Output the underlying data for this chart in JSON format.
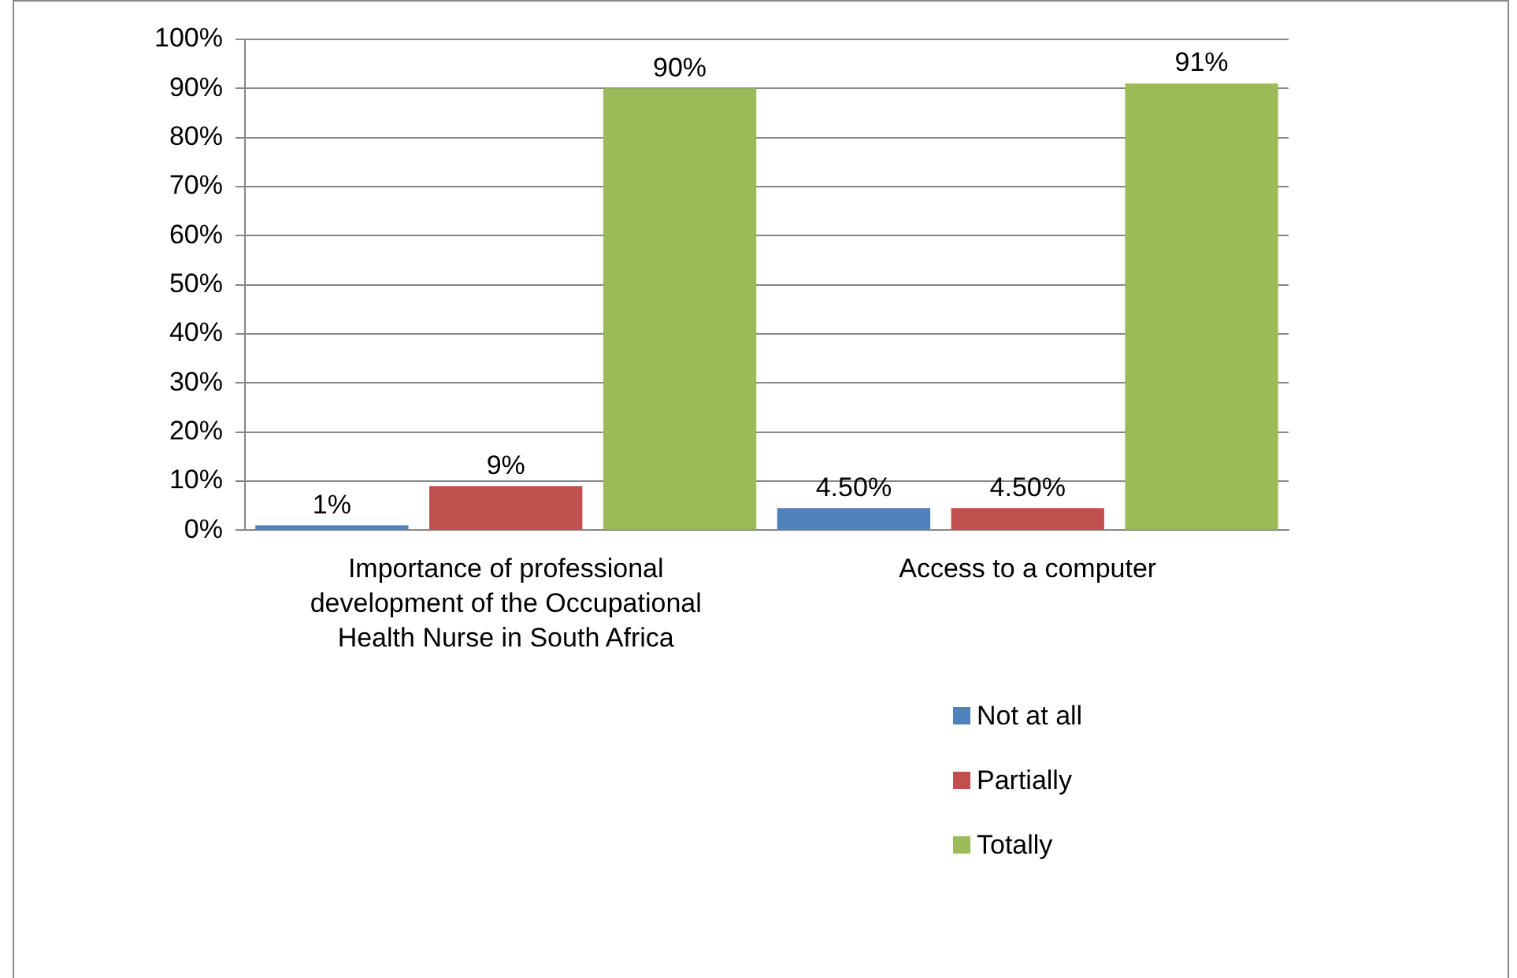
{
  "chart_data": {
    "type": "bar",
    "categories": [
      "Importance of professional development of the Occupational Health Nurse in South Africa",
      "Access to a computer"
    ],
    "series": [
      {
        "name": "Not at all",
        "color": "#4f81bd",
        "values": [
          1,
          4.5
        ],
        "value_labels": [
          "1%",
          "4.50%"
        ]
      },
      {
        "name": "Partially",
        "color": "#c0504d",
        "values": [
          9,
          4.5
        ],
        "value_labels": [
          "9%",
          "4.50%"
        ]
      },
      {
        "name": "Totally",
        "color": "#9bbb59",
        "values": [
          90,
          91
        ],
        "value_labels": [
          "90%",
          "91%"
        ]
      }
    ],
    "ylim": [
      0,
      100
    ],
    "yticks": [
      {
        "value": 0,
        "label": "0%"
      },
      {
        "value": 10,
        "label": "10%"
      },
      {
        "value": 20,
        "label": "20%"
      },
      {
        "value": 30,
        "label": "30%"
      },
      {
        "value": 40,
        "label": "40%"
      },
      {
        "value": 50,
        "label": "50%"
      },
      {
        "value": 60,
        "label": "60%"
      },
      {
        "value": 70,
        "label": "70%"
      },
      {
        "value": 80,
        "label": "80%"
      },
      {
        "value": 90,
        "label": "90%"
      },
      {
        "value": 100,
        "label": "100%"
      }
    ],
    "grid": "y",
    "legend": "bottom right"
  }
}
